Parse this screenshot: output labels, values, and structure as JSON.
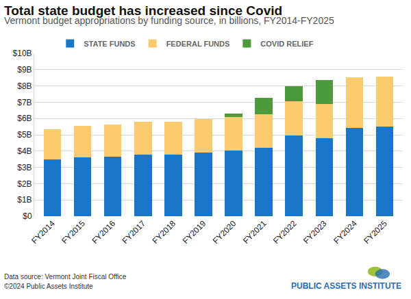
{
  "chart_data": {
    "type": "bar",
    "title": "Total state budget has increased since Covid",
    "subtitle": "Vermont budget appropriations by funding source, in billions, FY2014-FY2025",
    "categories": [
      "FY2014",
      "FY2015",
      "FY2016",
      "FY2017",
      "FY2018",
      "FY2019",
      "FY2020",
      "FY2021",
      "FY2022",
      "FY2023",
      "FY2024",
      "FY2025"
    ],
    "series": [
      {
        "name": "STATE FUNDS",
        "color": "#1a76c6",
        "values": [
          3.5,
          3.6,
          3.65,
          3.77,
          3.8,
          3.92,
          4.05,
          4.2,
          4.95,
          4.8,
          5.4,
          5.52
        ]
      },
      {
        "name": "FEDERAL FUNDS",
        "color": "#fccb6f",
        "values": [
          1.85,
          1.95,
          2.0,
          2.03,
          2.0,
          2.03,
          2.05,
          2.05,
          2.1,
          2.1,
          3.12,
          3.06
        ]
      },
      {
        "name": "COVID RELIEF",
        "color": "#4c9a3b",
        "values": [
          0,
          0,
          0,
          0,
          0,
          0,
          0.2,
          1.0,
          0.95,
          1.45,
          0.03,
          0
        ]
      }
    ],
    "stacked": true,
    "ylim": [
      0,
      10
    ],
    "yticks": [
      {
        "value": 0,
        "label": "$0"
      },
      {
        "value": 1,
        "label": "$1B"
      },
      {
        "value": 2,
        "label": "$2B"
      },
      {
        "value": 3,
        "label": "$3B"
      },
      {
        "value": 4,
        "label": "$4B"
      },
      {
        "value": 5,
        "label": "$5B"
      },
      {
        "value": 6,
        "label": "$6B"
      },
      {
        "value": 7,
        "label": "$7B"
      },
      {
        "value": 8,
        "label": "$8B"
      },
      {
        "value": 9,
        "label": "$9B"
      },
      {
        "value": 10,
        "label": "$10B"
      }
    ],
    "grid": true,
    "legend": "top",
    "annotations": [
      "Data source: Vermont Joint Fiscal Office",
      "©2024 Public Assets Institute",
      "PUBLIC ASSETS INSTITUTE"
    ]
  }
}
